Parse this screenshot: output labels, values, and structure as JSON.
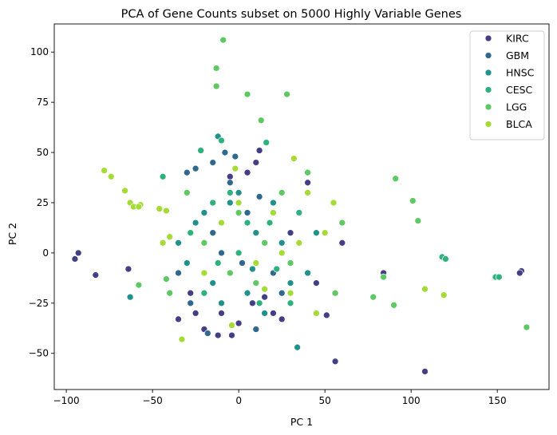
{
  "chart_data": {
    "type": "scatter",
    "title": "PCA of Gene Counts subset on 5000 Highly Variable Genes",
    "xlabel": "PC 1",
    "ylabel": "PC 2",
    "xlim": [
      -107,
      180
    ],
    "ylim": [
      -68,
      114
    ],
    "xticks": [
      -100,
      -50,
      0,
      50,
      100,
      150
    ],
    "yticks": [
      -50,
      -25,
      0,
      25,
      50,
      75,
      100
    ],
    "grid": false,
    "legend_position": "top-right",
    "series": [
      {
        "name": "KIRC",
        "color": "#433e85",
        "points": [
          [
            -95,
            -3
          ],
          [
            -93,
            0
          ],
          [
            -83,
            -11
          ],
          [
            -64,
            -8
          ],
          [
            164,
            -9
          ],
          [
            108,
            -59
          ],
          [
            56,
            -54
          ],
          [
            51,
            -31
          ],
          [
            -12,
            -41
          ],
          [
            -4,
            -41
          ],
          [
            12,
            51
          ],
          [
            10,
            45
          ],
          [
            -35,
            -33
          ],
          [
            -20,
            -38
          ],
          [
            25,
            -33
          ],
          [
            163,
            -10
          ],
          [
            84,
            -10
          ],
          [
            -5,
            38
          ],
          [
            5,
            40
          ],
          [
            20,
            -30
          ],
          [
            -28,
            -20
          ],
          [
            -10,
            -30
          ],
          [
            15,
            -22
          ],
          [
            30,
            10
          ],
          [
            45,
            -15
          ],
          [
            40,
            35
          ],
          [
            0,
            -35
          ],
          [
            -25,
            -30
          ],
          [
            8,
            -25
          ],
          [
            60,
            5
          ]
        ]
      },
      {
        "name": "GBM",
        "color": "#31688e",
        "points": [
          [
            -12,
            58
          ],
          [
            -15,
            45
          ],
          [
            -8,
            50
          ],
          [
            -25,
            42
          ],
          [
            -2,
            48
          ],
          [
            34,
            -47
          ],
          [
            -30,
            40
          ],
          [
            -18,
            -40
          ],
          [
            10,
            -38
          ],
          [
            -5,
            35
          ],
          [
            -20,
            20
          ],
          [
            5,
            20
          ],
          [
            -35,
            -10
          ],
          [
            20,
            -10
          ],
          [
            -10,
            0
          ],
          [
            12,
            28
          ],
          [
            -28,
            -25
          ],
          [
            25,
            -20
          ],
          [
            2,
            -5
          ],
          [
            -15,
            10
          ]
        ]
      },
      {
        "name": "HNSC",
        "color": "#21918c",
        "points": [
          [
            -63,
            -22
          ],
          [
            34,
            -47
          ],
          [
            -12,
            58
          ],
          [
            -20,
            20
          ],
          [
            10,
            10
          ],
          [
            -15,
            -15
          ],
          [
            5,
            -20
          ],
          [
            25,
            5
          ],
          [
            -30,
            -5
          ],
          [
            15,
            -30
          ],
          [
            -5,
            25
          ],
          [
            30,
            -15
          ],
          [
            0,
            30
          ],
          [
            -25,
            15
          ],
          [
            20,
            25
          ],
          [
            40,
            -10
          ],
          [
            -10,
            -25
          ],
          [
            8,
            -8
          ],
          [
            -35,
            5
          ],
          [
            45,
            10
          ]
        ]
      },
      {
        "name": "CESC",
        "color": "#2db27d",
        "points": [
          [
            149,
            -12
          ],
          [
            151,
            -12
          ],
          [
            118,
            -2
          ],
          [
            120,
            -3
          ],
          [
            -44,
            38
          ],
          [
            -22,
            51
          ],
          [
            -10,
            56
          ],
          [
            16,
            55
          ],
          [
            30,
            -25
          ],
          [
            5,
            15
          ],
          [
            -12,
            -5
          ],
          [
            22,
            -8
          ],
          [
            -28,
            10
          ],
          [
            12,
            -25
          ],
          [
            -5,
            30
          ],
          [
            35,
            20
          ],
          [
            -20,
            -20
          ],
          [
            0,
            0
          ],
          [
            18,
            15
          ],
          [
            -15,
            25
          ]
        ]
      },
      {
        "name": "LGG",
        "color": "#5ec962",
        "points": [
          [
            -9,
            106
          ],
          [
            -13,
            92
          ],
          [
            -13,
            83
          ],
          [
            5,
            79
          ],
          [
            28,
            79
          ],
          [
            13,
            66
          ],
          [
            -58,
            -16
          ],
          [
            -42,
            -13
          ],
          [
            91,
            37
          ],
          [
            101,
            26
          ],
          [
            104,
            16
          ],
          [
            167,
            -37
          ],
          [
            84,
            -12
          ],
          [
            78,
            -22
          ],
          [
            90,
            -26
          ],
          [
            56,
            -20
          ],
          [
            -40,
            -20
          ],
          [
            -20,
            5
          ],
          [
            10,
            -15
          ],
          [
            25,
            30
          ],
          [
            -5,
            -10
          ],
          [
            15,
            5
          ],
          [
            40,
            40
          ],
          [
            60,
            15
          ],
          [
            -30,
            30
          ],
          [
            0,
            20
          ],
          [
            30,
            -5
          ]
        ]
      },
      {
        "name": "BLCA",
        "color": "#a5db36",
        "points": [
          [
            -78,
            41
          ],
          [
            -74,
            38
          ],
          [
            -66,
            31
          ],
          [
            -63,
            25
          ],
          [
            -61,
            23
          ],
          [
            -57,
            24
          ],
          [
            -58,
            23
          ],
          [
            -46,
            22
          ],
          [
            -42,
            21
          ],
          [
            -40,
            8
          ],
          [
            -44,
            5
          ],
          [
            -33,
            -43
          ],
          [
            -4,
            -36
          ],
          [
            108,
            -18
          ],
          [
            119,
            -21
          ],
          [
            32,
            47
          ],
          [
            -2,
            42
          ],
          [
            40,
            30
          ],
          [
            20,
            20
          ],
          [
            50,
            10
          ],
          [
            -10,
            15
          ],
          [
            30,
            -20
          ],
          [
            10,
            -5
          ],
          [
            45,
            -30
          ],
          [
            0,
            25
          ],
          [
            25,
            0
          ],
          [
            -20,
            -10
          ],
          [
            55,
            25
          ],
          [
            35,
            5
          ],
          [
            15,
            -18
          ]
        ]
      }
    ]
  }
}
